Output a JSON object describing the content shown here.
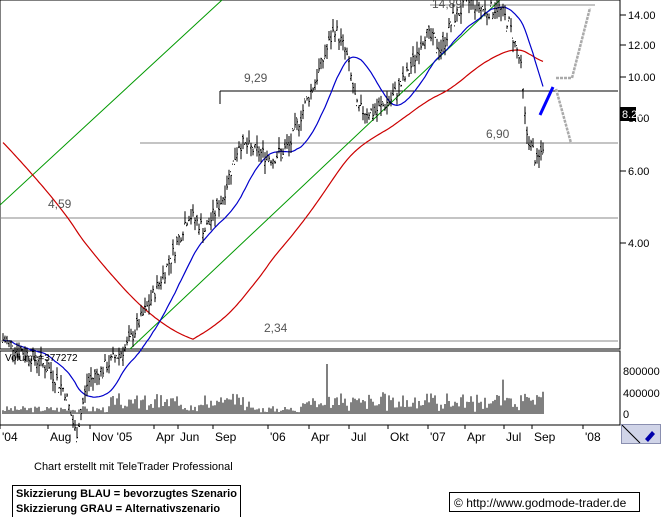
{
  "chart_data": {
    "type": "candlestick",
    "scale": "log",
    "price_axis": {
      "ticks": [
        "14.00",
        "12.00",
        "10.00",
        "8.00",
        "6.00",
        "4.00"
      ],
      "tick_values": [
        14,
        12,
        10,
        8,
        6,
        4
      ],
      "current_price_label": "8.20",
      "current_price": 8.2
    },
    "volume_axis": {
      "label": "Volume=377272",
      "ticks": [
        "800000",
        "400000",
        "0"
      ],
      "tick_values": [
        800000,
        400000,
        0
      ]
    },
    "x_axis": {
      "ticks": [
        "'04",
        "Aug",
        "Nov '05",
        "Apr",
        "Jun",
        "Sep",
        "'06",
        "Apr",
        "Jul",
        "Okt",
        "'07",
        "Apr",
        "Jul",
        "Sep",
        "'08"
      ]
    },
    "annotations": [
      {
        "text": "14,89",
        "value": 14.89
      },
      {
        "text": "9,29",
        "value": 9.29
      },
      {
        "text": "6,90",
        "value": 6.9
      },
      {
        "text": "4,59",
        "value": 4.59
      },
      {
        "text": "2,34",
        "value": 2.34
      }
    ],
    "series_colors": {
      "sma_fast": "#0000cc",
      "sma_slow": "#cc0000",
      "channel": "#009900",
      "scenario_blue": "#0000ff",
      "scenario_grey": "#aaaaaa"
    },
    "price_path": [
      {
        "t": 0,
        "v": 3.7
      },
      {
        "t": 4,
        "v": 3.5
      },
      {
        "t": 8,
        "v": 3.3
      },
      {
        "t": 11,
        "v": 3.0
      },
      {
        "t": 13,
        "v": 2.5
      },
      {
        "t": 15,
        "v": 3.1
      },
      {
        "t": 18,
        "v": 3.3
      },
      {
        "t": 22,
        "v": 3.6
      },
      {
        "t": 26,
        "v": 4.3
      },
      {
        "t": 30,
        "v": 5.2
      },
      {
        "t": 33,
        "v": 6.2
      },
      {
        "t": 36,
        "v": 5.8
      },
      {
        "t": 39,
        "v": 6.6
      },
      {
        "t": 42,
        "v": 8.3
      },
      {
        "t": 45,
        "v": 8.0
      },
      {
        "t": 48,
        "v": 7.8
      },
      {
        "t": 51,
        "v": 8.2
      },
      {
        "t": 53,
        "v": 9.3
      },
      {
        "t": 56,
        "v": 11.0
      },
      {
        "t": 59,
        "v": 13.3
      },
      {
        "t": 61,
        "v": 12.0
      },
      {
        "t": 63,
        "v": 9.5
      },
      {
        "t": 66,
        "v": 9.4
      },
      {
        "t": 69,
        "v": 9.9
      },
      {
        "t": 72,
        "v": 11.0
      },
      {
        "t": 75,
        "v": 13.0
      },
      {
        "t": 78,
        "v": 12.2
      },
      {
        "t": 80,
        "v": 13.8
      },
      {
        "t": 83,
        "v": 14.8
      },
      {
        "t": 86,
        "v": 14.2
      },
      {
        "t": 88,
        "v": 14.5
      },
      {
        "t": 90,
        "v": 13.5
      },
      {
        "t": 92,
        "v": 11.5
      },
      {
        "t": 93,
        "v": 8.7
      },
      {
        "t": 95,
        "v": 7.6
      },
      {
        "t": 96,
        "v": 8.2
      }
    ]
  },
  "scenario_legend": {
    "blue": "Skizzierung BLAU = bevorzugtes Szenario",
    "grey": "Skizzierung GRAU = Alternativszenario"
  },
  "credit": "Chart erstellt mit TeleTrader Professional",
  "url": "http://www.godmode-trader.de",
  "url_symbol": "©"
}
